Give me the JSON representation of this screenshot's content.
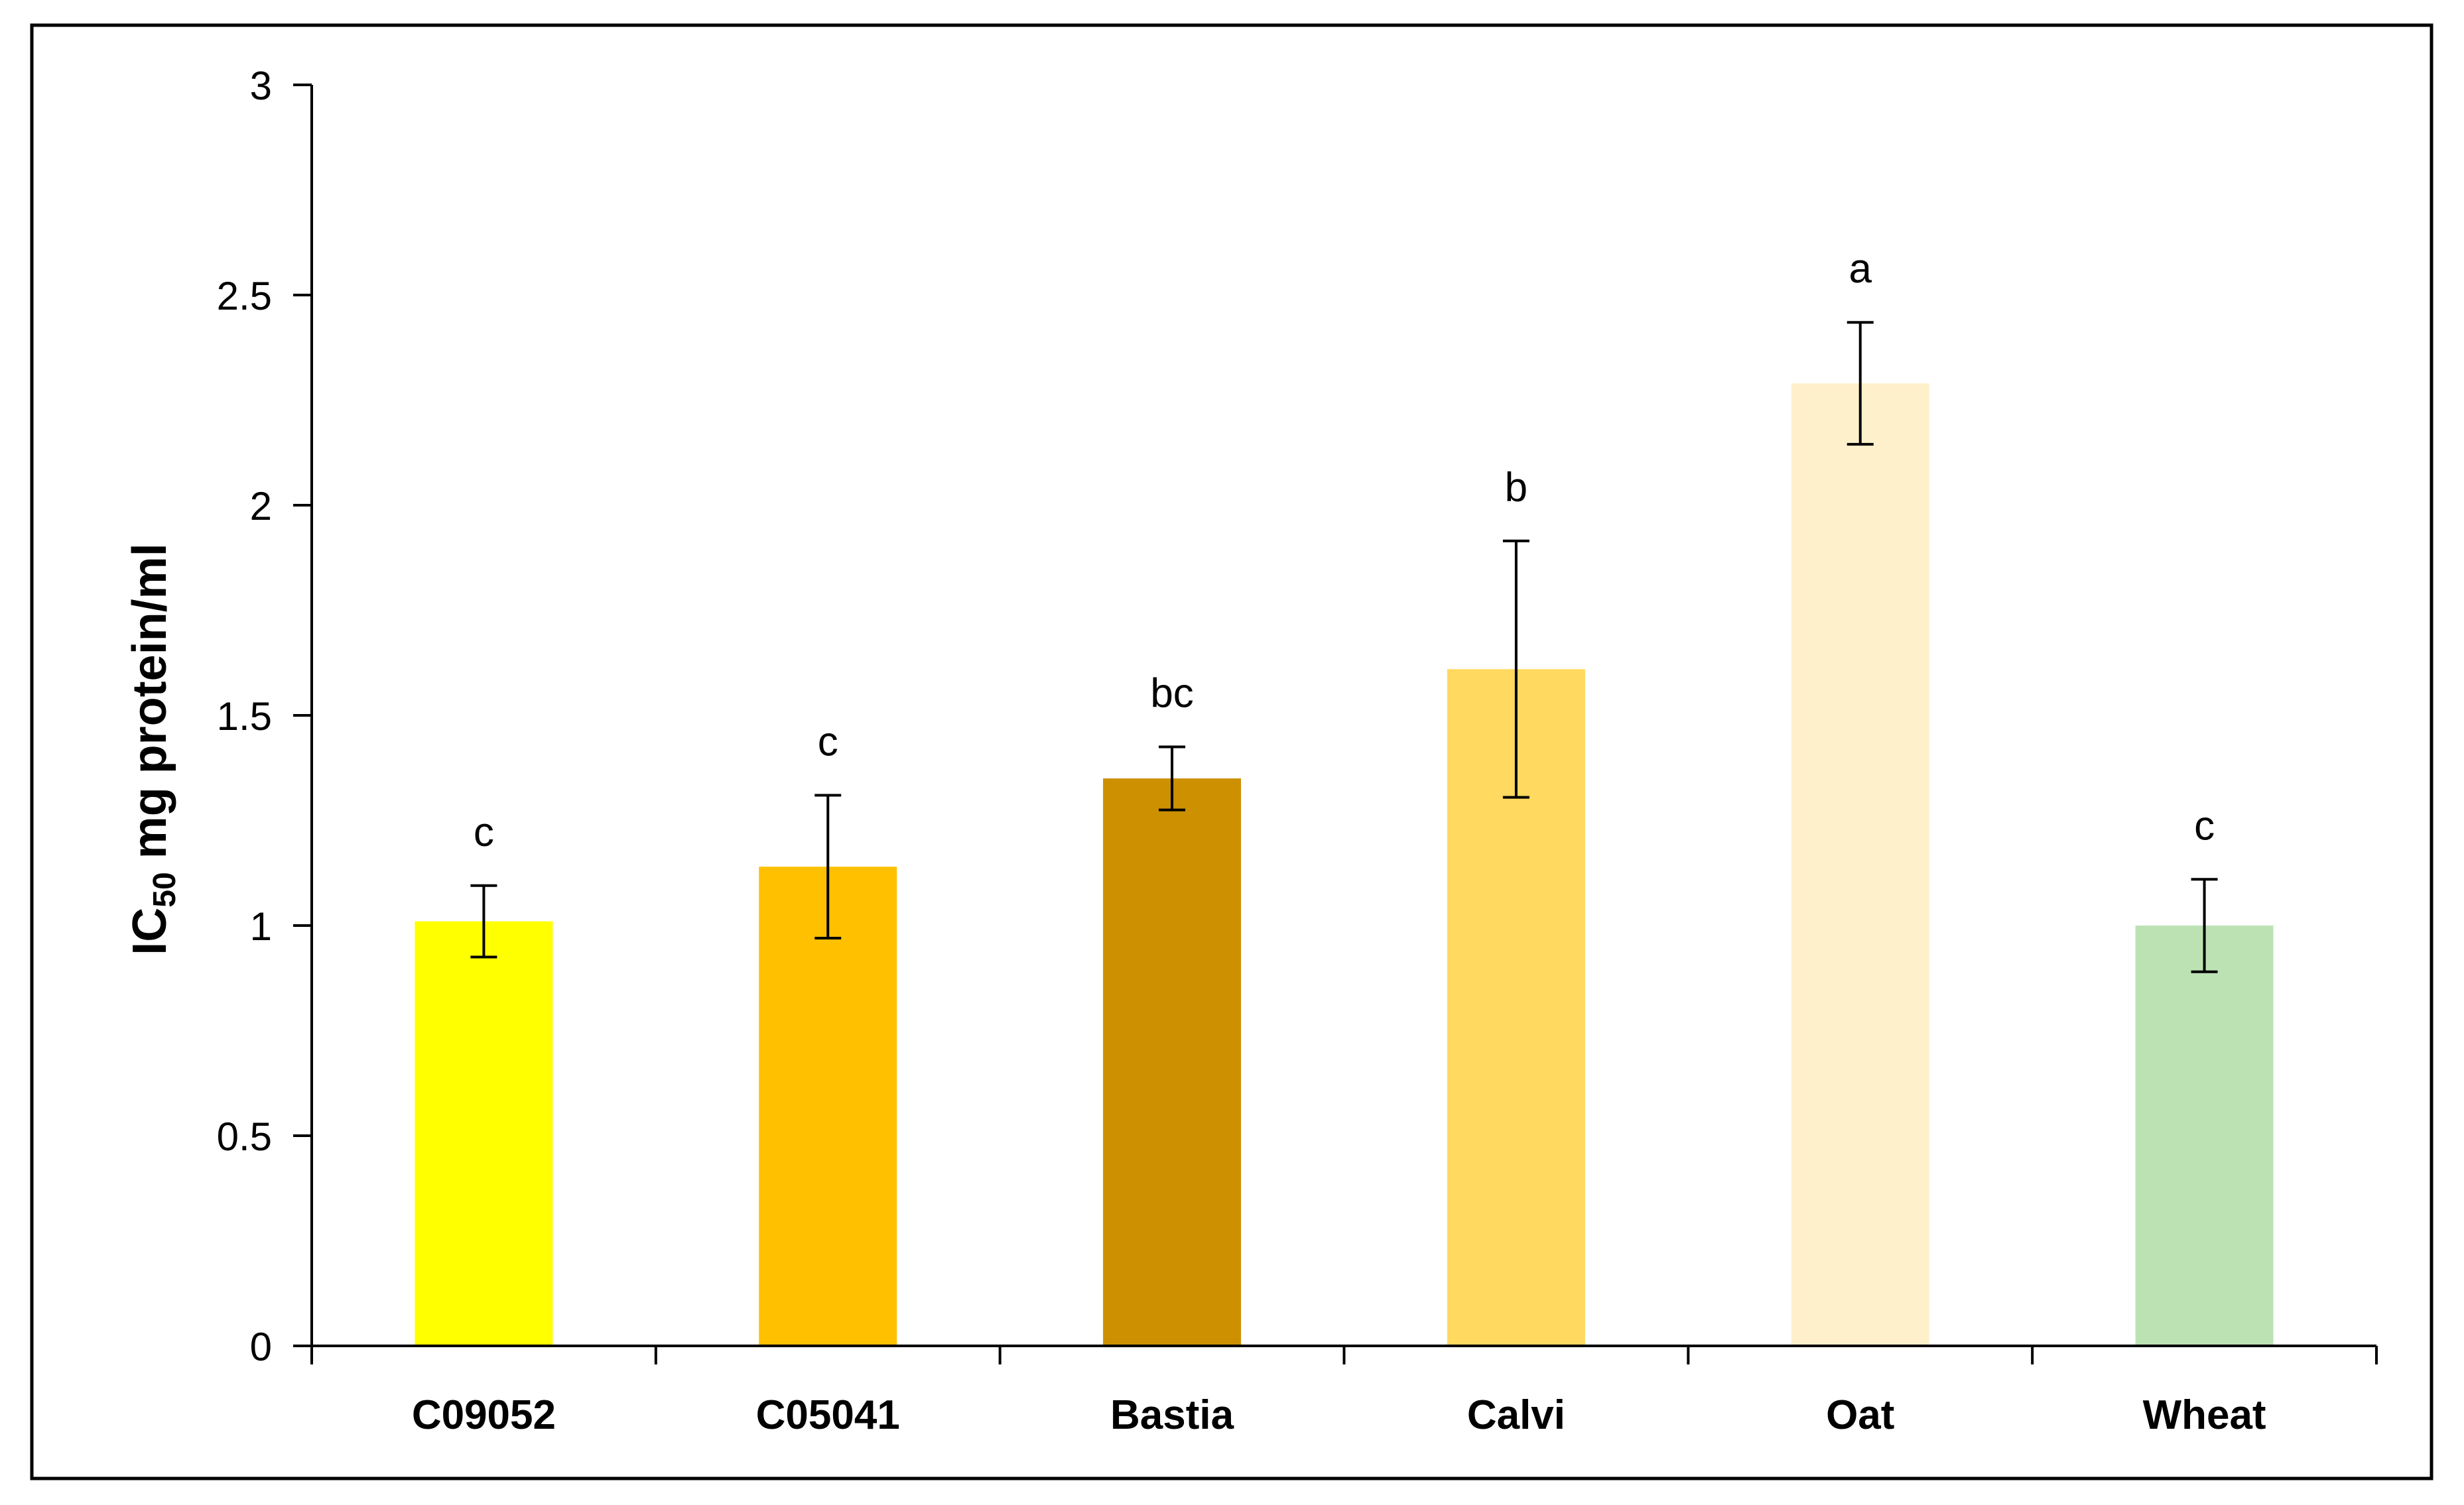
{
  "chart_data": {
    "type": "bar",
    "title": "",
    "xlabel": "",
    "ylabel": {
      "main": "IC",
      "subscript": "50",
      "rest": " mg protein/ml"
    },
    "ylim": [
      0,
      3
    ],
    "yticks": [
      0,
      0.5,
      1,
      1.5,
      2,
      2.5,
      3
    ],
    "ytick_labels": [
      "0",
      "0.5",
      "1",
      "1.5",
      "2",
      "2.5",
      "3"
    ],
    "categories": [
      "C09052",
      "C05041",
      "Bastia",
      "Calvi",
      "Oat",
      "Wheat"
    ],
    "values": [
      1.01,
      1.14,
      1.35,
      1.61,
      2.29,
      1.0
    ],
    "errors": [
      0.085,
      0.17,
      0.075,
      0.305,
      0.145,
      0.11
    ],
    "significance_letters": [
      "c",
      "c",
      "bc",
      "b",
      "a",
      "c"
    ],
    "colors": [
      "#FFFF00",
      "#FFC000",
      "#CC9000",
      "#FFD960",
      "#FFF0CC",
      "#BCE2B4"
    ],
    "grid": false,
    "legend": "none"
  }
}
